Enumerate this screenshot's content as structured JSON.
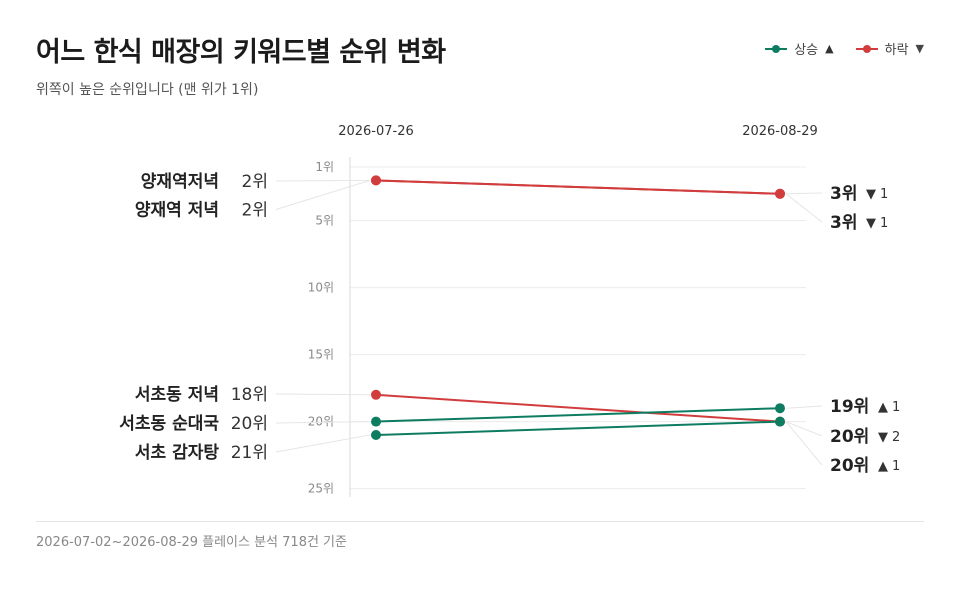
{
  "title": "어느 한식 매장의 키워드별 순위 변화",
  "subtitle": "위쪽이 높은 순위입니다 (맨 위가 1위)",
  "legend": {
    "up": {
      "label": "상승",
      "arrow": "▲",
      "color": "#0e7c61"
    },
    "down": {
      "label": "하락",
      "arrow": "▼",
      "color": "#d13c3c"
    }
  },
  "footer": "2026-07-02~2026-08-29 플레이스 분석 718건 기준",
  "chart_data": {
    "type": "line",
    "x": [
      "2026-07-26",
      "2026-08-29"
    ],
    "y_axis": {
      "ticks": [
        1,
        5,
        10,
        15,
        20,
        25
      ],
      "tick_suffix": "위",
      "range": [
        1,
        26
      ],
      "inverted": true
    },
    "grid": true,
    "rank_suffix": "위",
    "series": [
      {
        "name": "양재역저녁",
        "start": 2,
        "end": 3,
        "direction": "down",
        "change": 1
      },
      {
        "name": "양재역 저녁",
        "start": 2,
        "end": 3,
        "direction": "down",
        "change": 1
      },
      {
        "name": "서초동 저녁",
        "start": 18,
        "end": 20,
        "direction": "down",
        "change": 2
      },
      {
        "name": "서초동 순대국",
        "start": 20,
        "end": 19,
        "direction": "up",
        "change": 1
      },
      {
        "name": "서초 감자탕",
        "start": 21,
        "end": 20,
        "direction": "up",
        "change": 1
      }
    ],
    "left_labels": [
      {
        "series": 0,
        "text": "양재역저녁",
        "rank": "2위"
      },
      {
        "series": 1,
        "text": "양재역 저녁",
        "rank": "2위"
      },
      {
        "series": 2,
        "text": "서초동 저녁",
        "rank": "18위"
      },
      {
        "series": 3,
        "text": "서초동 순대국",
        "rank": "20위"
      },
      {
        "series": 4,
        "text": "서초 감자탕",
        "rank": "21위"
      }
    ],
    "right_labels": [
      {
        "series": 0,
        "rank": "3위",
        "arrow": "▼",
        "delta": "1"
      },
      {
        "series": 1,
        "rank": "3위",
        "arrow": "▼",
        "delta": "1"
      },
      {
        "series": 3,
        "rank": "19위",
        "arrow": "▲",
        "delta": "1"
      },
      {
        "series": 2,
        "rank": "20위",
        "arrow": "▼",
        "delta": "2"
      },
      {
        "series": 4,
        "rank": "20위",
        "arrow": "▲",
        "delta": "1"
      }
    ]
  }
}
